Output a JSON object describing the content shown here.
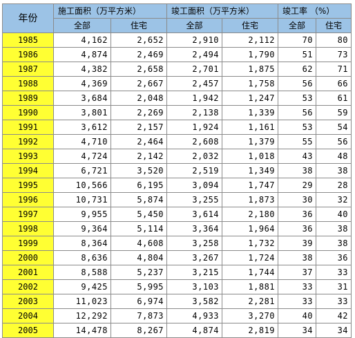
{
  "header": {
    "year": "年份",
    "construction_area": "施工面积（万平方米）",
    "completed_area": "竣工面积（万平方米）",
    "completion_rate": "竣工率 （%）",
    "all": "全部",
    "residential": "住宅"
  },
  "rows": [
    [
      "1985",
      "4,162",
      "2,652",
      "2,910",
      "2,112",
      "70",
      "80"
    ],
    [
      "1986",
      "4,874",
      "2,469",
      "2,494",
      "1,790",
      "51",
      "73"
    ],
    [
      "1987",
      "4,382",
      "2,658",
      "2,701",
      "1,875",
      "62",
      "71"
    ],
    [
      "1988",
      "4,369",
      "2,667",
      "2,457",
      "1,758",
      "56",
      "66"
    ],
    [
      "1989",
      "3,684",
      "2,048",
      "1,942",
      "1,247",
      "53",
      "61"
    ],
    [
      "1990",
      "3,801",
      "2,269",
      "2,138",
      "1,339",
      "56",
      "59"
    ],
    [
      "1991",
      "3,612",
      "2,157",
      "1,924",
      "1,161",
      "53",
      "54"
    ],
    [
      "1992",
      "4,710",
      "2,464",
      "2,608",
      "1,379",
      "55",
      "56"
    ],
    [
      "1993",
      "4,724",
      "2,142",
      "2,032",
      "1,018",
      "43",
      "48"
    ],
    [
      "1994",
      "6,721",
      "3,520",
      "2,519",
      "1,349",
      "38",
      "38"
    ],
    [
      "1995",
      "10,566",
      "6,195",
      "3,094",
      "1,747",
      "29",
      "28"
    ],
    [
      "1996",
      "10,731",
      "5,874",
      "3,255",
      "1,873",
      "30",
      "32"
    ],
    [
      "1997",
      "9,955",
      "5,450",
      "3,614",
      "2,180",
      "36",
      "40"
    ],
    [
      "1998",
      "9,364",
      "5,114",
      "3,364",
      "1,964",
      "36",
      "38"
    ],
    [
      "1999",
      "8,364",
      "4,608",
      "3,258",
      "1,732",
      "39",
      "38"
    ],
    [
      "2000",
      "8,636",
      "4,804",
      "3,267",
      "1,724",
      "38",
      "36"
    ],
    [
      "2001",
      "8,588",
      "5,237",
      "3,215",
      "1,744",
      "37",
      "33"
    ],
    [
      "2002",
      "9,425",
      "5,995",
      "3,103",
      "1,881",
      "33",
      "31"
    ],
    [
      "2003",
      "11,023",
      "6,974",
      "3,582",
      "2,281",
      "33",
      "33"
    ],
    [
      "2004",
      "12,292",
      "7,873",
      "4,933",
      "3,270",
      "40",
      "42"
    ],
    [
      "2005",
      "14,478",
      "8,267",
      "4,874",
      "2,819",
      "34",
      "34"
    ]
  ]
}
